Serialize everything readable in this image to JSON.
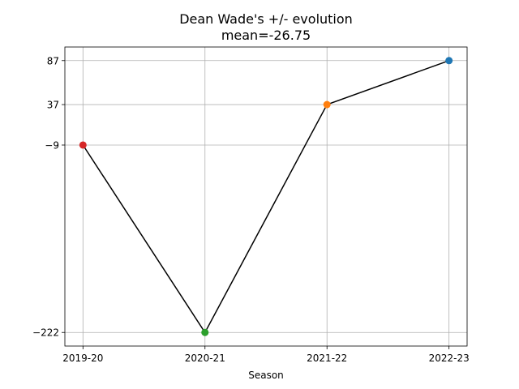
{
  "chart_data": {
    "type": "line",
    "title": "Dean Wade's +/- evolution",
    "subtitle": "mean=-26.75",
    "xlabel": "Season",
    "ylabel": "",
    "categories": [
      "2019-20",
      "2020-21",
      "2021-22",
      "2022-23"
    ],
    "values": [
      -9,
      -222,
      37,
      87
    ],
    "point_colors": [
      "#d62728",
      "#2ca02c",
      "#ff7f0e",
      "#1f77b4"
    ],
    "line_color": "#000000",
    "yticks": [
      87,
      37,
      -9,
      -222
    ],
    "ytick_labels": [
      "87",
      "37",
      "−9",
      "−222"
    ],
    "ylim": [
      -237.45,
      102.45
    ],
    "grid": true
  }
}
